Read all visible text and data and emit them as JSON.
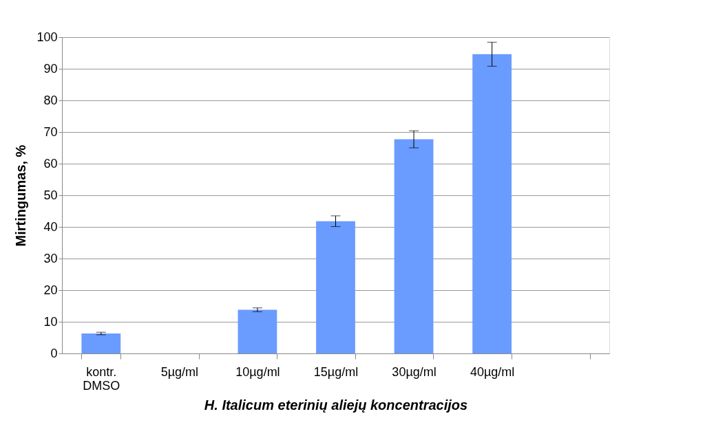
{
  "chart_data": {
    "type": "bar",
    "xlabel": "H. Italicum eterinių aliejų koncentracijos",
    "ylabel": "Mirtingumas, %",
    "categories": [
      "kontr. DMSO",
      "5µg/ml",
      "10µg/ml",
      "15µg/ml",
      "30µg/ml",
      "40µg/ml",
      null
    ],
    "values": [
      6.3,
      null,
      13.8,
      41.8,
      67.7,
      94.6,
      null
    ],
    "errors": [
      0.4,
      null,
      0.6,
      1.7,
      2.7,
      3.8,
      null
    ],
    "color": "#6a9bff",
    "ylim": [
      0,
      100
    ],
    "yticks": [
      0,
      10,
      20,
      30,
      40,
      50,
      60,
      70,
      80,
      90,
      100
    ],
    "grid": "y"
  }
}
